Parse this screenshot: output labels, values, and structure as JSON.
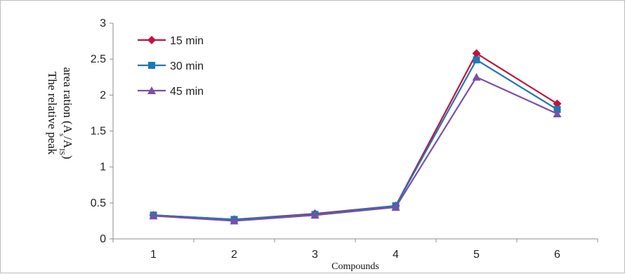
{
  "chart_data": {
    "type": "line",
    "categories": [
      "1",
      "2",
      "3",
      "4",
      "5",
      "6"
    ],
    "series": [
      {
        "name": "15 min",
        "color": "#c0143c",
        "marker": "diamond",
        "values": [
          0.33,
          0.27,
          0.35,
          0.46,
          2.58,
          1.88
        ]
      },
      {
        "name": "30 min",
        "color": "#1f77b4",
        "marker": "square",
        "values": [
          0.33,
          0.27,
          0.34,
          0.46,
          2.49,
          1.8
        ]
      },
      {
        "name": "45 min",
        "color": "#7b4fa6",
        "marker": "triangle",
        "values": [
          0.32,
          0.25,
          0.33,
          0.44,
          2.25,
          1.74
        ]
      }
    ],
    "xlabel": "Compounds",
    "ylabel_line1": "The relative peak",
    "ylabel_line2_prefix": "area ration (A",
    "ylabel_sub1": "s",
    "ylabel_mid": "/A",
    "ylabel_sub2": "IS",
    "ylabel_suffix": ")",
    "ylim": [
      0,
      3
    ],
    "yticks": [
      "0",
      "0.5",
      "1",
      "1.5",
      "2",
      "2.5",
      "3"
    ],
    "grid": false,
    "legend_position": "top-left"
  }
}
